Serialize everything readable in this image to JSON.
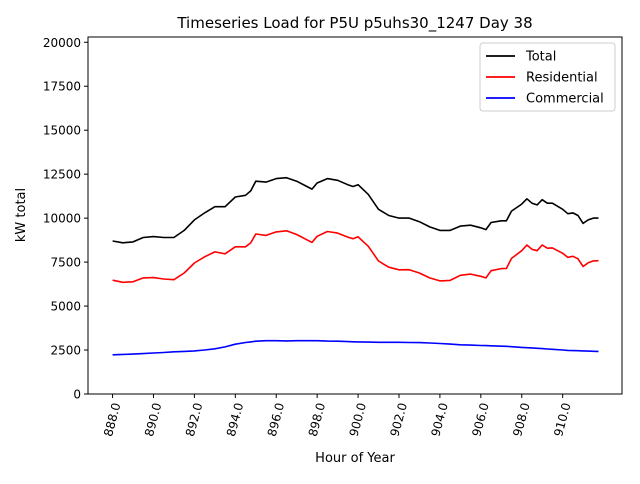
{
  "chart_data": {
    "type": "line",
    "title": "Timeseries Load for P5U p5uhs30_1247  Day 38",
    "xlabel": "Hour of Year",
    "ylabel": "kW total",
    "xlim": [
      886.8,
      912.9
    ],
    "ylim": [
      0,
      20300
    ],
    "xticks": [
      888,
      890,
      892,
      894,
      896,
      898,
      900,
      902,
      904,
      906,
      908,
      910
    ],
    "xtick_labels": [
      "888.0",
      "890.0",
      "892.0",
      "894.0",
      "896.0",
      "898.0",
      "900.0",
      "902.0",
      "904.0",
      "906.0",
      "908.0",
      "910.0"
    ],
    "yticks": [
      0,
      2500,
      5000,
      7500,
      10000,
      12500,
      15000,
      17500,
      20000
    ],
    "ytick_labels": [
      "0",
      "2500",
      "5000",
      "7500",
      "10000",
      "12500",
      "15000",
      "17500",
      "20000"
    ],
    "grid": false,
    "legend_position": "top-right",
    "x": [
      888.0,
      888.5,
      889.0,
      889.5,
      890.0,
      890.5,
      891.0,
      891.5,
      892.0,
      892.5,
      893.0,
      893.5,
      894.0,
      894.5,
      894.75,
      895.0,
      895.5,
      896.0,
      896.5,
      897.0,
      897.5,
      897.75,
      898.0,
      898.5,
      899.0,
      899.5,
      899.75,
      900.0,
      900.5,
      901.0,
      901.5,
      902.0,
      902.5,
      903.0,
      903.5,
      904.0,
      904.5,
      905.0,
      905.5,
      906.0,
      906.25,
      906.5,
      907.0,
      907.25,
      907.5,
      908.0,
      908.25,
      908.5,
      908.75,
      909.0,
      909.25,
      909.5,
      910.0,
      910.25,
      910.5,
      910.75,
      911.0,
      911.25,
      911.5,
      911.75
    ],
    "series": [
      {
        "name": "Total",
        "color": "#000000",
        "values": [
          8700,
          8600,
          8650,
          8900,
          8950,
          8900,
          8900,
          9300,
          9900,
          10300,
          10650,
          10650,
          11200,
          11300,
          11550,
          12100,
          12050,
          12250,
          12300,
          12100,
          11800,
          11650,
          12000,
          12250,
          12150,
          11900,
          11800,
          11900,
          11350,
          10500,
          10150,
          10000,
          10000,
          9800,
          9500,
          9300,
          9300,
          9550,
          9600,
          9450,
          9350,
          9750,
          9850,
          9850,
          10400,
          10800,
          11100,
          10850,
          10750,
          11050,
          10850,
          10850,
          10500,
          10250,
          10300,
          10150,
          9700,
          9900,
          10000,
          10000
        ]
      },
      {
        "name": "Residential",
        "color": "#ff0000",
        "values": [
          6470,
          6350,
          6380,
          6600,
          6620,
          6540,
          6500,
          6880,
          7450,
          7800,
          8080,
          7970,
          8370,
          8370,
          8590,
          9100,
          9020,
          9220,
          9280,
          9070,
          8770,
          8620,
          8970,
          9240,
          9150,
          8920,
          8830,
          8940,
          8400,
          7560,
          7210,
          7060,
          7070,
          6880,
          6600,
          6430,
          6460,
          6750,
          6820,
          6690,
          6600,
          7010,
          7130,
          7140,
          7710,
          8150,
          8470,
          8230,
          8150,
          8470,
          8290,
          8310,
          8000,
          7770,
          7830,
          7690,
          7250,
          7460,
          7570,
          7580
        ]
      },
      {
        "name": "Commercial",
        "color": "#0000ff",
        "values": [
          2230,
          2250,
          2270,
          2300,
          2330,
          2360,
          2400,
          2420,
          2450,
          2500,
          2570,
          2680,
          2830,
          2930,
          2960,
          3000,
          3030,
          3030,
          3020,
          3030,
          3030,
          3030,
          3030,
          3010,
          3000,
          2980,
          2970,
          2960,
          2950,
          2940,
          2940,
          2940,
          2930,
          2920,
          2900,
          2870,
          2840,
          2800,
          2780,
          2760,
          2750,
          2740,
          2720,
          2710,
          2690,
          2650,
          2630,
          2620,
          2600,
          2580,
          2560,
          2540,
          2500,
          2480,
          2470,
          2460,
          2450,
          2440,
          2430,
          2420
        ]
      }
    ]
  }
}
